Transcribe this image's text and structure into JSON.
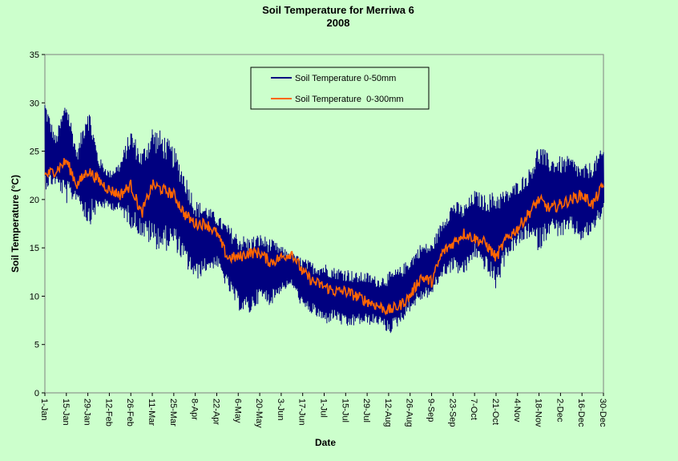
{
  "chart_data": {
    "type": "line",
    "title": "Soil Temperature for Merriwa 6",
    "subtitle": "2008",
    "xlabel": "Date",
    "ylabel": "Soil Temperature (°C)",
    "ylim": [
      0,
      35
    ],
    "yticks": [
      "0",
      "5",
      "10",
      "15",
      "20",
      "25",
      "30",
      "35"
    ],
    "xlim_day": [
      0,
      364
    ],
    "x_tick_labels": [
      "1-Jan",
      "15-Jan",
      "29-Jan",
      "12-Feb",
      "26-Feb",
      "11-Mar",
      "25-Mar",
      "8-Apr",
      "22-Apr",
      "6-May",
      "20-May",
      "3-Jun",
      "17-Jun",
      "1-Jul",
      "15-Jul",
      "29-Jul",
      "12-Aug",
      "26-Aug",
      "9-Sep",
      "23-Sep",
      "7-Oct",
      "21-Oct",
      "4-Nov",
      "18-Nov",
      "2-Dec",
      "16-Dec",
      "30-Dec"
    ],
    "grid": false,
    "legend_position": "top-center",
    "background_color": "#ccffcc",
    "series": [
      {
        "name": "Soil Temperature 0-50mm",
        "color": "#000080",
        "x": [
          "1-Jan",
          "8-Jan",
          "15-Jan",
          "22-Jan",
          "29-Jan",
          "5-Feb",
          "12-Feb",
          "19-Feb",
          "26-Feb",
          "4-Mar",
          "11-Mar",
          "18-Mar",
          "25-Mar",
          "1-Apr",
          "8-Apr",
          "15-Apr",
          "22-Apr",
          "29-Apr",
          "6-May",
          "13-May",
          "20-May",
          "27-May",
          "3-Jun",
          "10-Jun",
          "17-Jun",
          "24-Jun",
          "1-Jul",
          "8-Jul",
          "15-Jul",
          "22-Jul",
          "29-Jul",
          "5-Aug",
          "12-Aug",
          "19-Aug",
          "26-Aug",
          "2-Sep",
          "9-Sep",
          "16-Sep",
          "23-Sep",
          "30-Sep",
          "7-Oct",
          "14-Oct",
          "21-Oct",
          "28-Oct",
          "4-Nov",
          "11-Nov",
          "18-Nov",
          "25-Nov",
          "2-Dec",
          "9-Dec",
          "16-Dec",
          "23-Dec",
          "30-Dec"
        ],
        "y_max": [
          30.5,
          26.5,
          30.8,
          25.0,
          30.4,
          24.5,
          23.0,
          24.0,
          27.5,
          25.0,
          27.8,
          27.0,
          25.5,
          23.0,
          20.0,
          19.5,
          18.5,
          17.5,
          16.5,
          16.2,
          16.5,
          16.0,
          15.2,
          14.5,
          14.0,
          13.5,
          13.5,
          13.0,
          13.0,
          12.5,
          12.5,
          12.0,
          12.5,
          13.0,
          14.0,
          15.5,
          15.5,
          18.0,
          20.0,
          19.5,
          21.0,
          20.5,
          21.0,
          21.0,
          22.0,
          23.0,
          26.0,
          24.5,
          24.5,
          24.5,
          23.5,
          24.0,
          25.5
        ],
        "y_min": [
          21.0,
          21.5,
          19.5,
          20.0,
          17.0,
          19.0,
          19.0,
          18.5,
          17.0,
          16.0,
          15.0,
          14.5,
          15.0,
          13.0,
          11.5,
          12.5,
          13.0,
          10.5,
          8.5,
          8.0,
          9.5,
          9.0,
          10.5,
          11.0,
          8.5,
          8.0,
          7.0,
          7.5,
          6.5,
          7.0,
          7.0,
          7.0,
          6.0,
          7.0,
          8.5,
          9.5,
          10.0,
          12.0,
          12.5,
          12.0,
          14.0,
          12.5,
          10.5,
          14.0,
          15.0,
          16.0,
          14.5,
          16.5,
          16.0,
          16.5,
          15.5,
          16.5,
          18.5
        ]
      },
      {
        "name": "Soil Temperature  0-300mm",
        "color": "#ff6600",
        "x": [
          "1-Jan",
          "8-Jan",
          "15-Jan",
          "22-Jan",
          "29-Jan",
          "5-Feb",
          "12-Feb",
          "19-Feb",
          "26-Feb",
          "4-Mar",
          "11-Mar",
          "18-Mar",
          "25-Mar",
          "1-Apr",
          "8-Apr",
          "15-Apr",
          "22-Apr",
          "29-Apr",
          "6-May",
          "13-May",
          "20-May",
          "27-May",
          "3-Jun",
          "10-Jun",
          "17-Jun",
          "24-Jun",
          "1-Jul",
          "8-Jul",
          "15-Jul",
          "22-Jul",
          "29-Jul",
          "5-Aug",
          "12-Aug",
          "19-Aug",
          "26-Aug",
          "2-Sep",
          "9-Sep",
          "16-Sep",
          "23-Sep",
          "30-Sep",
          "7-Oct",
          "14-Oct",
          "21-Oct",
          "28-Oct",
          "4-Nov",
          "11-Nov",
          "18-Nov",
          "25-Nov",
          "2-Dec",
          "9-Dec",
          "16-Dec",
          "23-Dec",
          "30-Dec"
        ],
        "y": [
          22.5,
          23.0,
          24.0,
          21.5,
          23.0,
          22.0,
          21.0,
          20.5,
          21.5,
          18.5,
          21.5,
          21.0,
          20.5,
          18.5,
          17.5,
          17.5,
          16.5,
          14.0,
          14.0,
          14.5,
          14.5,
          13.5,
          14.0,
          14.5,
          12.5,
          11.5,
          11.0,
          10.5,
          10.5,
          10.0,
          9.5,
          9.0,
          8.5,
          9.0,
          10.0,
          12.0,
          11.5,
          14.5,
          15.5,
          16.5,
          16.0,
          15.5,
          14.0,
          16.0,
          17.0,
          18.5,
          20.0,
          19.0,
          19.5,
          20.0,
          20.5,
          19.5,
          21.5
        ]
      }
    ]
  }
}
